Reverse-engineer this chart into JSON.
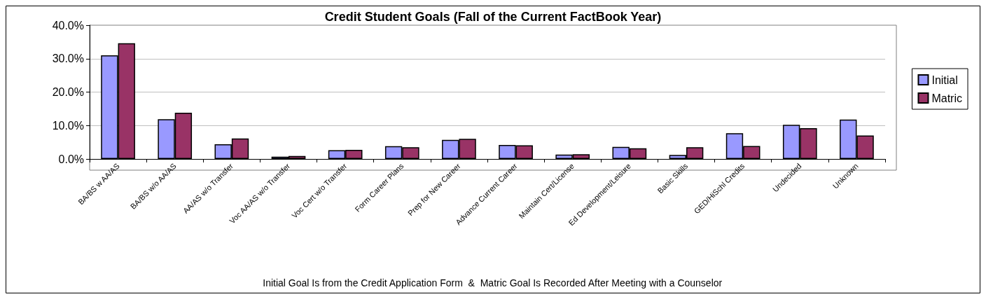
{
  "chart_data": {
    "type": "bar",
    "title": "Credit Student Goals (Fall of the Current FactBook Year)",
    "categories": [
      "BA/BS w AA/AS",
      "BA/BS w/o AA/AS",
      "AA/AS w/o Transfer",
      "Voc AA/AS w/o Transfer",
      "Voc Cert w/o Transfer",
      "Form Career Plans",
      "Prep for New Career",
      "Advance Current Career",
      "Maintain Cert/License",
      "Ed Development/Leisure",
      "Basic Skills",
      "GED/HiSchl Credits",
      "Undecided",
      "Unknown"
    ],
    "series": [
      {
        "name": "Initial",
        "color": "#9999ff",
        "values": [
          31.0,
          11.9,
          4.4,
          0.7,
          2.6,
          3.8,
          5.7,
          4.2,
          1.3,
          3.6,
          1.2,
          7.7,
          10.2,
          11.8
        ]
      },
      {
        "name": "Matric",
        "color": "#993366",
        "values": [
          34.6,
          13.8,
          6.1,
          0.9,
          2.7,
          3.5,
          6.0,
          4.1,
          1.4,
          3.2,
          3.5,
          3.9,
          9.2,
          7.0
        ]
      }
    ],
    "ylim": [
      0,
      40
    ],
    "yticks": [
      {
        "value": 0,
        "label": "0.0%"
      },
      {
        "value": 10,
        "label": "10.0%"
      },
      {
        "value": 20,
        "label": "20.0%"
      },
      {
        "value": 30,
        "label": "30.0%"
      },
      {
        "value": 40,
        "label": "40.0%"
      }
    ],
    "grid": "y",
    "legend": "right",
    "annotations": [
      "Initial Goal Is from the Credit Application Form  &  Matric Goal Is Recorded After Meeting with a Counselor"
    ]
  }
}
